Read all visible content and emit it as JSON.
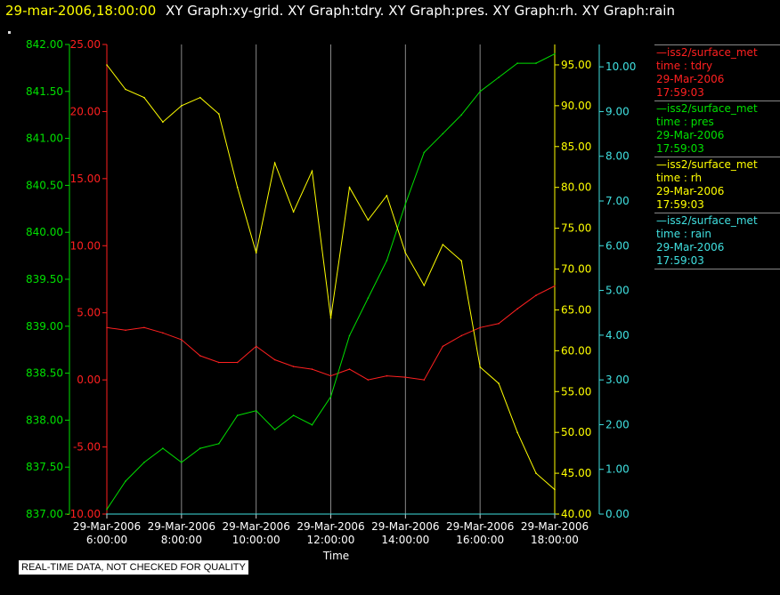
{
  "title": {
    "time_label": "29-mar-2006,18:00:00",
    "graph_list": "XY Graph:xy-grid.  XY Graph:tdry.  XY Graph:pres.  XY Graph:rh.  XY Graph:rain"
  },
  "footer_note": "REAL-TIME DATA, NOT CHECKED FOR QUALITY",
  "colors": {
    "background": "#000000",
    "tdry": "#ff2020",
    "pres": "#00e000",
    "rh": "#ffff00",
    "rain": "#40e0e0",
    "grid": "#888888",
    "axis": "#cccccc"
  },
  "legend": [
    {
      "source": "iss2/surface_met",
      "var": "time : tdry",
      "date": "29-Mar-2006",
      "time": "17:59:03",
      "color": "#ff2020"
    },
    {
      "source": "iss2/surface_met",
      "var": "time : pres",
      "date": "29-Mar-2006",
      "time": "17:59:03",
      "color": "#00e000"
    },
    {
      "source": "iss2/surface_met",
      "var": "time : rh",
      "date": "29-Mar-2006",
      "time": "17:59:03",
      "color": "#ffff00"
    },
    {
      "source": "iss2/surface_met",
      "var": "time : rain",
      "date": "29-Mar-2006",
      "time": "17:59:03",
      "color": "#40e0e0"
    }
  ],
  "chart_data": {
    "type": "line",
    "xlabel": "Time",
    "xlim": [
      "2006-03-29 06:00",
      "2006-03-29 18:00"
    ],
    "x_ticks": [
      {
        "date": "29-Mar-2006",
        "time": "6:00:00"
      },
      {
        "date": "29-Mar-2006",
        "time": "8:00:00"
      },
      {
        "date": "29-Mar-2006",
        "time": "10:00:00"
      },
      {
        "date": "29-Mar-2006",
        "time": "12:00:00"
      },
      {
        "date": "29-Mar-2006",
        "time": "14:00:00"
      },
      {
        "date": "29-Mar-2006",
        "time": "16:00:00"
      },
      {
        "date": "29-Mar-2006",
        "time": "18:00:00"
      }
    ],
    "grid": "vertical",
    "axes": {
      "tdry": {
        "ylim": [
          -10,
          25
        ],
        "ticks": [
          "-10.00",
          "-5.00",
          "0.00",
          "5.00",
          "10.00",
          "15.00",
          "20.00",
          "25.00"
        ],
        "color": "#ff2020",
        "position": "left-inner"
      },
      "pres": {
        "ylim": [
          837.0,
          842.0
        ],
        "ticks": [
          "837.00",
          "837.50",
          "838.00",
          "838.50",
          "839.00",
          "839.50",
          "840.00",
          "840.50",
          "841.00",
          "841.50",
          "842.00"
        ],
        "color": "#00e000",
        "position": "left-outer"
      },
      "rh": {
        "ylim": [
          40,
          97.5
        ],
        "ticks": [
          "40.00",
          "45.00",
          "50.00",
          "55.00",
          "60.00",
          "65.00",
          "70.00",
          "75.00",
          "80.00",
          "85.00",
          "90.00",
          "95.00"
        ],
        "color": "#ffff00",
        "position": "right-inner"
      },
      "rain": {
        "ylim": [
          0,
          10.5
        ],
        "ticks": [
          "0.00",
          "1.00",
          "2.00",
          "3.00",
          "4.00",
          "5.00",
          "6.00",
          "7.00",
          "8.00",
          "9.00",
          "10.00"
        ],
        "color": "#40e0e0",
        "position": "right-outer"
      }
    },
    "series": [
      {
        "name": "tdry",
        "axis": "tdry",
        "x": [
          "06:00",
          "06:30",
          "07:00",
          "07:30",
          "08:00",
          "08:30",
          "09:00",
          "09:30",
          "10:00",
          "10:30",
          "11:00",
          "11:30",
          "12:00",
          "12:30",
          "13:00",
          "13:30",
          "14:00",
          "14:30",
          "15:00",
          "15:30",
          "16:00",
          "16:30",
          "17:00",
          "17:30",
          "18:00"
        ],
        "y": [
          3.9,
          3.7,
          3.9,
          3.5,
          3.0,
          1.8,
          1.3,
          1.3,
          2.5,
          1.5,
          1.0,
          0.8,
          0.3,
          0.8,
          0.0,
          0.3,
          0.2,
          0.0,
          2.5,
          3.3,
          3.9,
          4.2,
          5.3,
          6.3,
          7.0
        ]
      },
      {
        "name": "pres",
        "axis": "pres",
        "x": [
          "06:00",
          "06:30",
          "07:00",
          "07:30",
          "08:00",
          "08:30",
          "09:00",
          "09:30",
          "10:00",
          "10:30",
          "11:00",
          "11:30",
          "12:00",
          "12:30",
          "13:00",
          "13:30",
          "14:00",
          "14:30",
          "15:00",
          "15:30",
          "16:00",
          "16:30",
          "17:00",
          "17:30",
          "18:00"
        ],
        "y": [
          837.05,
          837.35,
          837.55,
          837.7,
          837.55,
          837.7,
          837.75,
          838.05,
          838.1,
          837.9,
          838.05,
          837.95,
          838.25,
          838.9,
          839.3,
          839.7,
          840.3,
          840.85,
          841.05,
          841.25,
          841.5,
          841.65,
          841.8,
          841.8,
          841.9
        ]
      },
      {
        "name": "rh",
        "axis": "rh",
        "x": [
          "06:00",
          "06:30",
          "07:00",
          "07:30",
          "08:00",
          "08:30",
          "09:00",
          "09:30",
          "10:00",
          "10:30",
          "11:00",
          "11:30",
          "12:00",
          "12:30",
          "13:00",
          "13:30",
          "14:00",
          "14:30",
          "15:00",
          "15:30",
          "16:00",
          "16:30",
          "17:00",
          "17:30",
          "18:00"
        ],
        "y": [
          95.0,
          92.0,
          91.0,
          88.0,
          90.0,
          91.0,
          89.0,
          80.0,
          72.0,
          83.0,
          77.0,
          82.0,
          64.0,
          80.0,
          76.0,
          79.0,
          72.0,
          68.0,
          73.0,
          71.0,
          58.0,
          56.0,
          50.0,
          45.0,
          43.0
        ]
      },
      {
        "name": "rain",
        "axis": "rain",
        "x": [
          "06:00",
          "18:00"
        ],
        "y": [
          0.0,
          0.0
        ]
      }
    ]
  }
}
